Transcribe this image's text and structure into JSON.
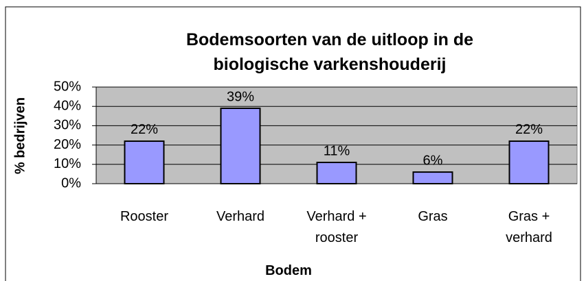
{
  "chart_data": {
    "type": "bar",
    "title": "Bodemsoorten van de uitloop in de biologische varkenshouderij",
    "x_label": "Bodem",
    "y_label": "% bedrijven",
    "categories": [
      "Rooster",
      "Verhard",
      "Verhard + rooster",
      "Gras",
      "Gras + verhard"
    ],
    "values": [
      22,
      39,
      11,
      6,
      22
    ],
    "value_labels": [
      "22%",
      "39%",
      "11%",
      "6%",
      "22%"
    ],
    "color": "#9999ff",
    "ylim": [
      0,
      50
    ],
    "yticks": [
      {
        "value": 0,
        "label": "0%"
      },
      {
        "value": 10,
        "label": "10%"
      },
      {
        "value": 20,
        "label": "20%"
      },
      {
        "value": 30,
        "label": "30%"
      },
      {
        "value": 40,
        "label": "40%"
      },
      {
        "value": 50,
        "label": "50%"
      }
    ],
    "grid": true
  }
}
